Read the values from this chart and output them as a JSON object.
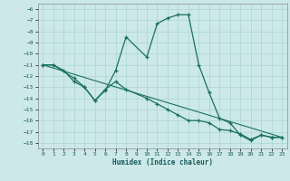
{
  "xlabel": "Humidex (Indice chaleur)",
  "bg_color": "#cce8e8",
  "line_color": "#1a7060",
  "grid_color": "#aad4d4",
  "xlim": [
    -0.5,
    23.5
  ],
  "ylim": [
    -18.5,
    -5.5
  ],
  "xticks": [
    0,
    1,
    2,
    3,
    4,
    5,
    6,
    7,
    8,
    9,
    10,
    11,
    12,
    13,
    14,
    15,
    16,
    17,
    18,
    19,
    20,
    21,
    22,
    23
  ],
  "yticks": [
    -6,
    -7,
    -8,
    -9,
    -10,
    -11,
    -12,
    -13,
    -14,
    -15,
    -16,
    -17,
    -18
  ],
  "line1_x": [
    0,
    1,
    2,
    3,
    4,
    5,
    6,
    7,
    8,
    10,
    11,
    12,
    13,
    14,
    15,
    16,
    17,
    18,
    19,
    20,
    21,
    22,
    23
  ],
  "line1_y": [
    -11,
    -11,
    -11.5,
    -12.5,
    -13,
    -14.2,
    -13.3,
    -11.5,
    -8.5,
    -10.3,
    -7.3,
    -6.8,
    -6.5,
    -6.5,
    -11,
    -13.5,
    -15.8,
    -16.2,
    -17.3,
    -17.8,
    -17.3,
    -17.5,
    -17.5
  ],
  "line2_x": [
    0,
    1,
    3,
    4,
    5,
    6,
    7,
    8,
    10,
    11,
    12,
    13,
    14,
    15,
    16,
    17,
    18,
    19,
    20,
    21,
    22,
    23
  ],
  "line2_y": [
    -11,
    -11,
    -12.2,
    -13,
    -14.2,
    -13.2,
    -12.5,
    -13.2,
    -14,
    -14.5,
    -15.0,
    -15.5,
    -16.0,
    -16.0,
    -16.2,
    -16.8,
    -16.9,
    -17.2,
    -17.7,
    -17.3,
    -17.5,
    -17.5
  ],
  "trend_x": [
    0,
    23
  ],
  "trend_y": [
    -11,
    -17.5
  ]
}
